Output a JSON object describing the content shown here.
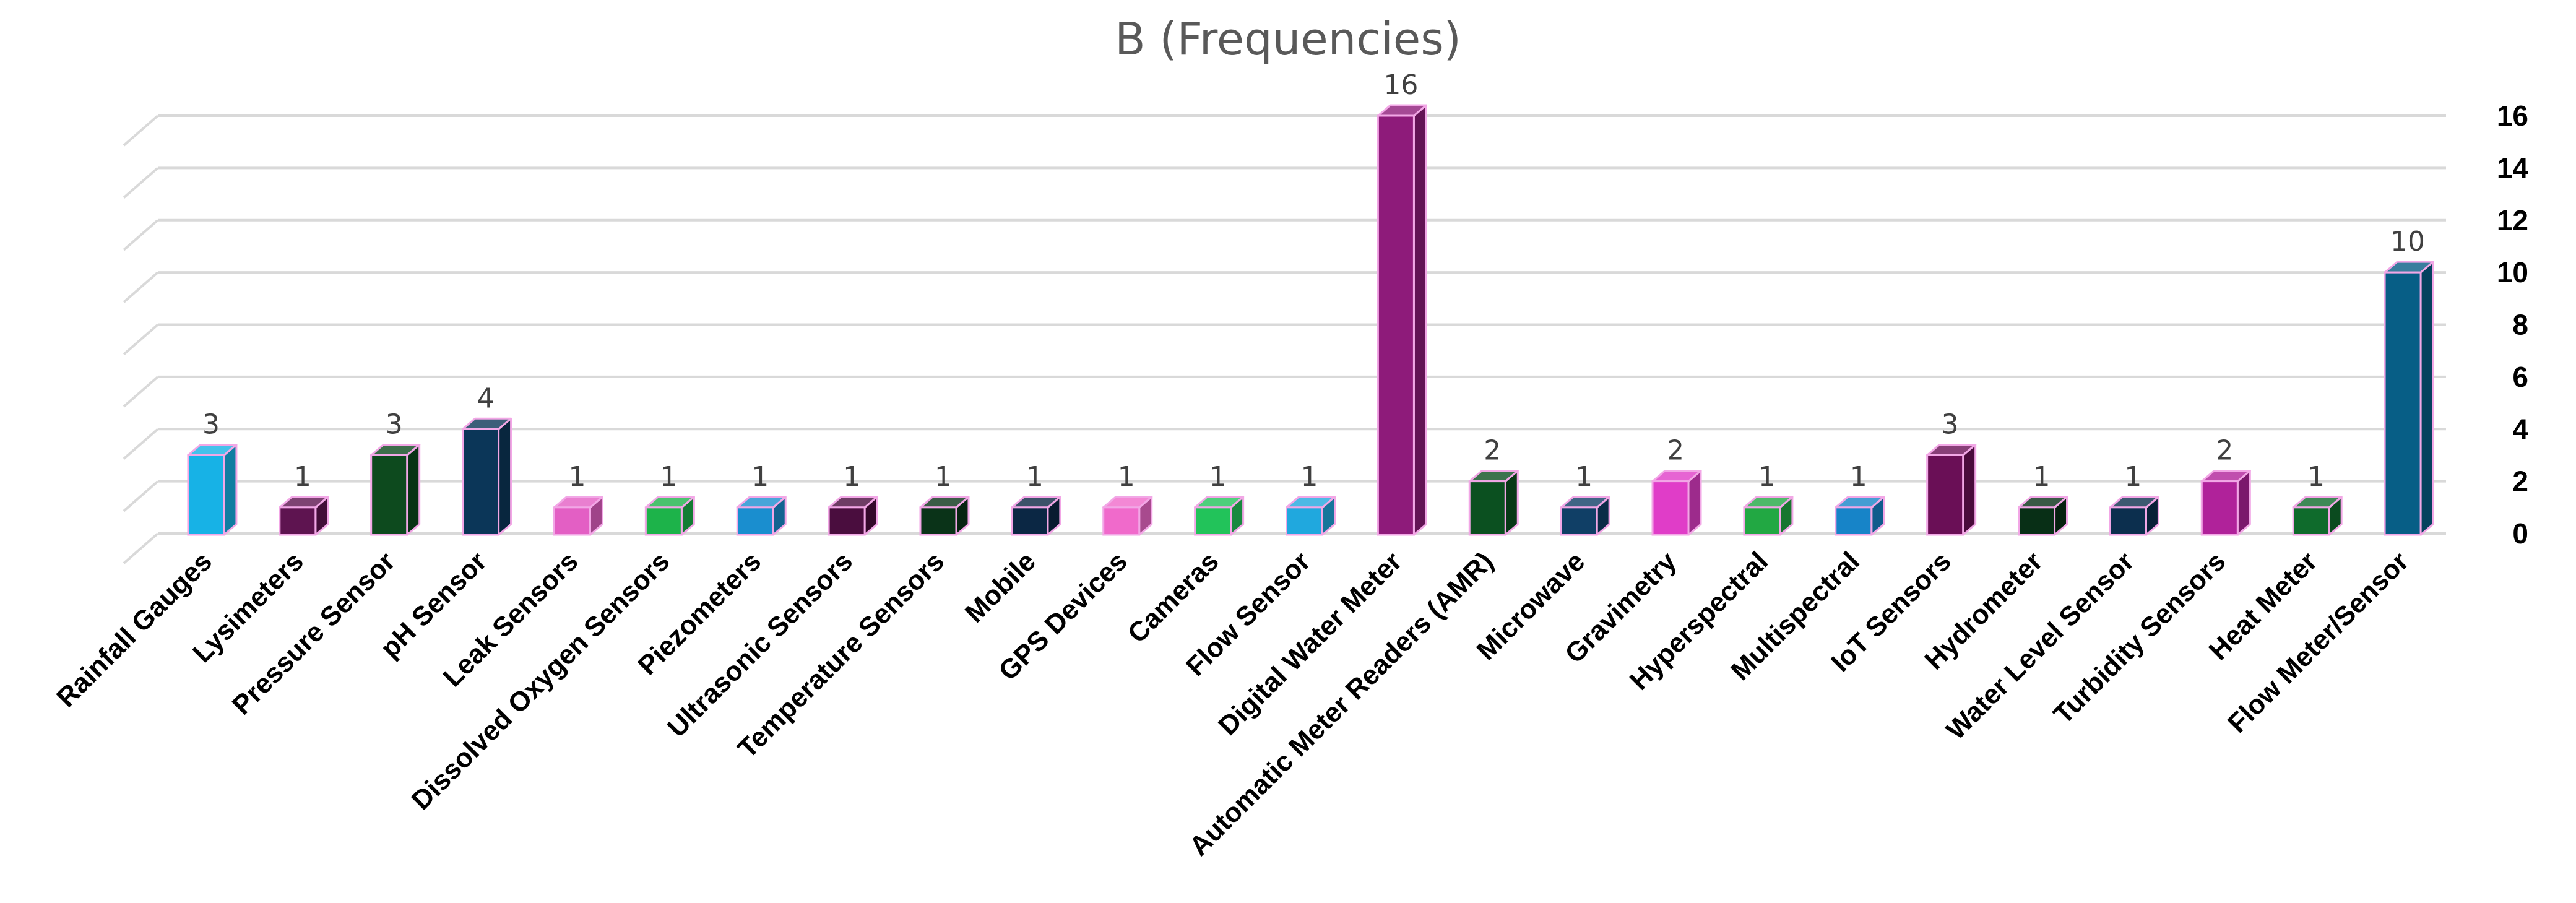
{
  "chart_data": {
    "type": "bar",
    "title": "B (Frequencies)",
    "xlabel": "",
    "ylabel": "",
    "ylim": [
      0,
      16
    ],
    "yticks": [
      0,
      2,
      4,
      6,
      8,
      10,
      12,
      14,
      16
    ],
    "grid": true,
    "legend": "none",
    "categories": [
      "Rainfall Gauges",
      "Lysimeters",
      "Pressure Sensor",
      "pH Sensor",
      "Leak Sensors",
      "Dissolved Oxygen Sensors",
      "Piezometers",
      "Ultrasonic Sensors",
      "Temperature Sensors",
      "Mobile",
      "GPS Devices",
      "Cameras",
      "Flow Sensor",
      "Digital Water Meter",
      "Automatic Meter Readers (AMR)",
      "Microwave",
      "Gravimetry",
      "Hyperspectral",
      "Multispectral",
      "IoT Sensors",
      "Hydrometer",
      "Water Level Sensor",
      "Turbidity Sensors",
      "Heat Meter",
      "Flow Meter/Sensor"
    ],
    "values": [
      3,
      1,
      3,
      4,
      1,
      1,
      1,
      1,
      1,
      1,
      1,
      1,
      1,
      16,
      2,
      1,
      2,
      1,
      1,
      3,
      1,
      1,
      2,
      1,
      10
    ],
    "data_labels": [
      "3",
      "1",
      "3",
      "4",
      "1",
      "1",
      "1",
      "1",
      "1",
      "1",
      "1",
      "1",
      "1",
      "16",
      "2",
      "1",
      "2",
      "1",
      "1",
      "3",
      "1",
      "1",
      "2",
      "1",
      "10"
    ],
    "colors": [
      "#17B2E6",
      "#5E1450",
      "#0D4A1E",
      "#0B3658",
      "#E35FC4",
      "#1DB34A",
      "#1A8ECF",
      "#4A0D3E",
      "#0A3318",
      "#0B2744",
      "#F06ACB",
      "#22C35A",
      "#20A8DE",
      "#8E1B7A",
      "#0B5020",
      "#103F66",
      "#E03DC8",
      "#22A843",
      "#1784C8",
      "#6A0F56",
      "#082F16",
      "#0C2F4E",
      "#B0229A",
      "#0F6B2C",
      "#075E86"
    ],
    "bar_edge_color": "#F2A7E6"
  }
}
